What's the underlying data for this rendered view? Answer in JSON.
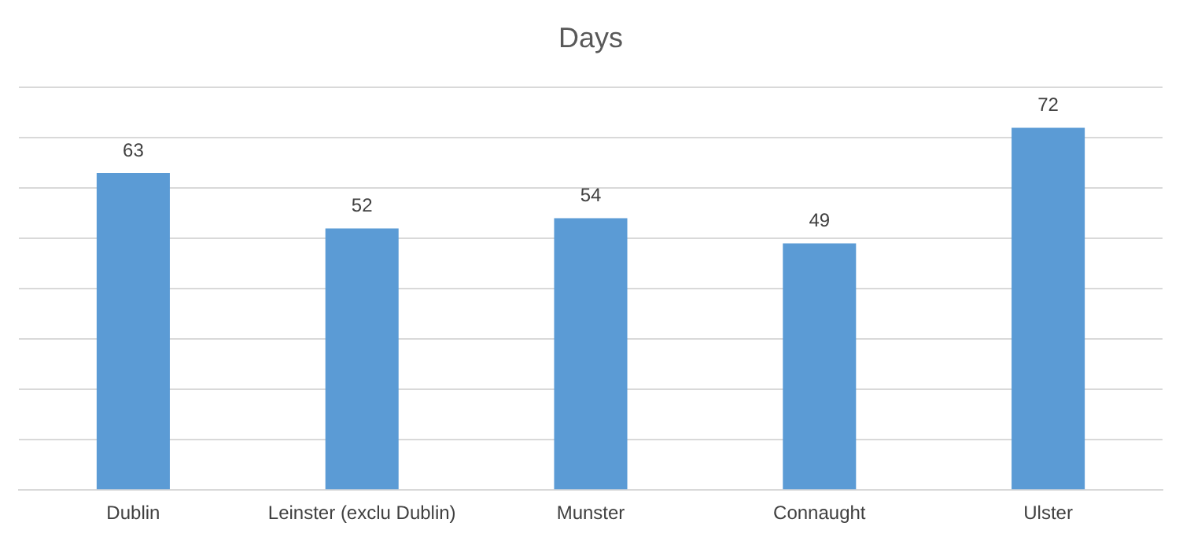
{
  "chart_data": {
    "type": "bar",
    "title": "Days",
    "categories": [
      "Dublin",
      "Leinster (exclu Dublin)",
      "Munster",
      "Connaught",
      "Ulster"
    ],
    "values": [
      63,
      52,
      54,
      49,
      72
    ],
    "color": "#5b9bd5",
    "ylim": [
      0,
      80
    ],
    "yticks": [
      {
        "value": 0,
        "label": null
      },
      {
        "value": 10,
        "label": null
      },
      {
        "value": 20,
        "label": null
      },
      {
        "value": 30,
        "label": null
      },
      {
        "value": 40,
        "label": null
      },
      {
        "value": 50,
        "label": null
      },
      {
        "value": 60,
        "label": null
      },
      {
        "value": 70,
        "label": null
      },
      {
        "value": 80,
        "label": null
      }
    ],
    "grid": "y",
    "tick_labels": "x",
    "data_labels": true
  }
}
